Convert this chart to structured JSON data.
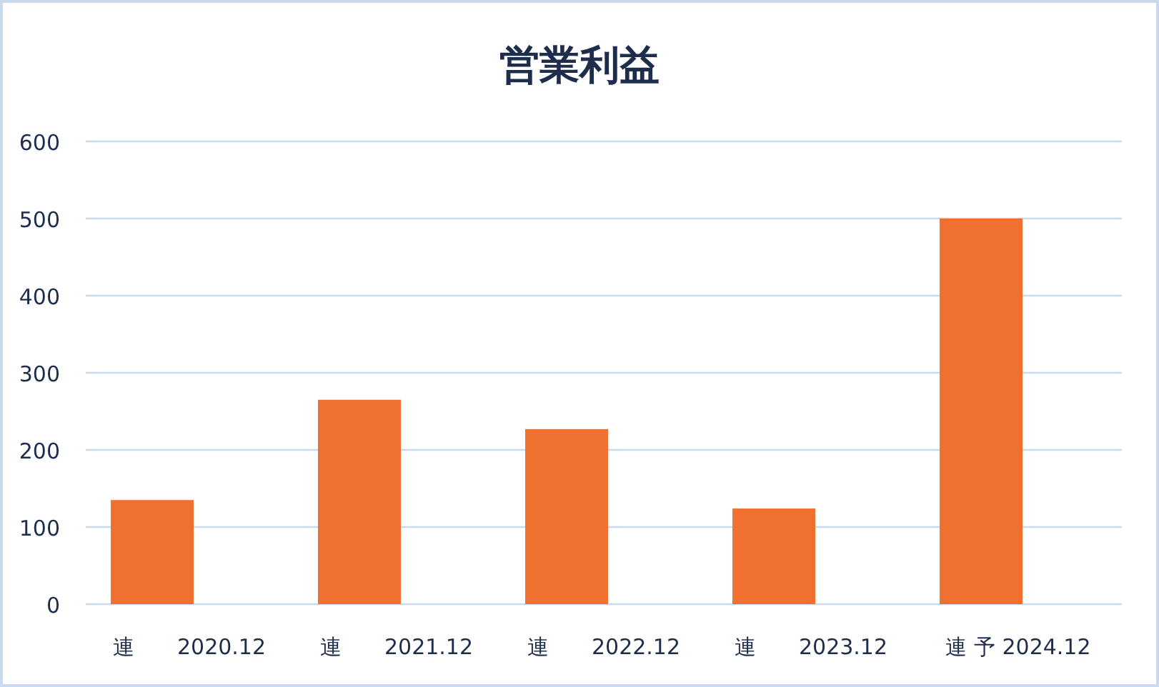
{
  "chart_data": {
    "type": "bar",
    "title": "営業利益",
    "categories": [
      "連　　2020.12",
      "連　　2021.12",
      "連　　2022.12",
      "連　　2023.12",
      "連 予 2024.12"
    ],
    "values": [
      135,
      265,
      227,
      124,
      500
    ],
    "color": "#f07030",
    "ylim": [
      0,
      600
    ],
    "yticks": [
      0,
      100,
      200,
      300,
      400,
      500,
      600
    ],
    "grid": "y"
  }
}
